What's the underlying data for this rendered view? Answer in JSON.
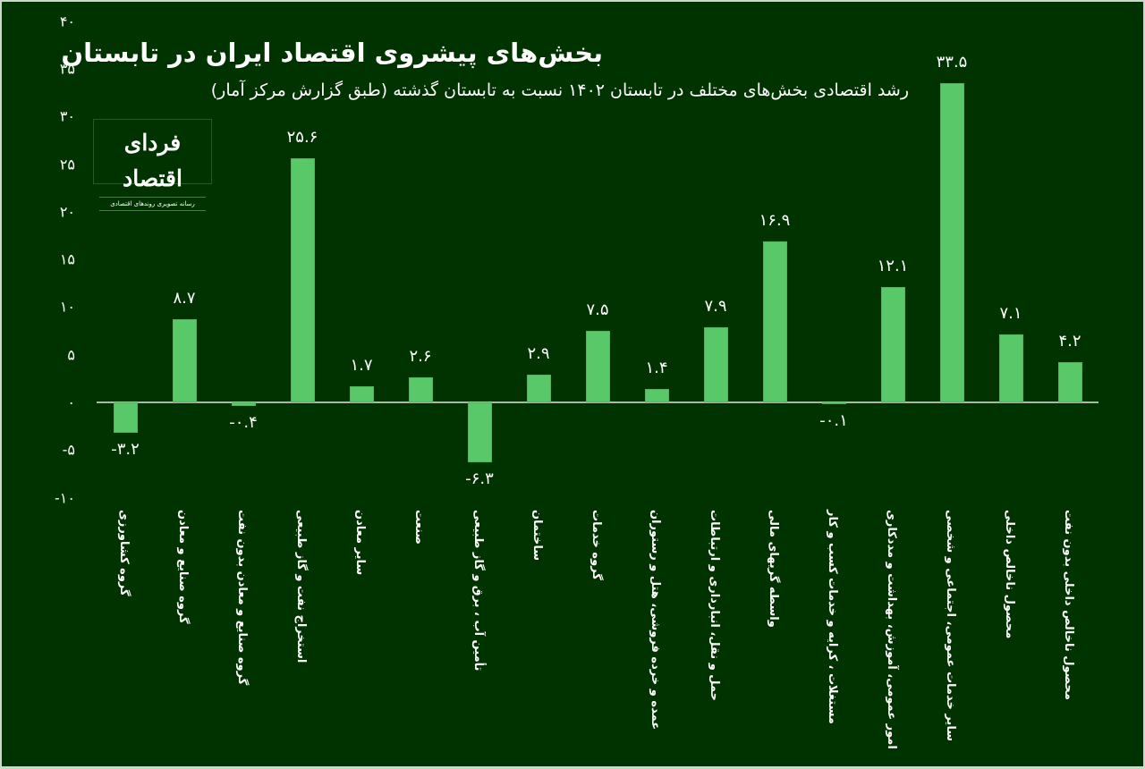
{
  "header": {
    "title": "بخش‌های پیشروی اقتصاد ایران در تابستان",
    "subtitle": "رشد اقتصادی بخش‌های مختلف در تابستان ۱۴۰۲ نسبت به تابستان گذشته (طبق گزارش مرکز آمار)"
  },
  "logo": {
    "name": "فردای اقتصاد",
    "tagline": "رسانه تصویری روندهای اقتصادی"
  },
  "colors": {
    "background": "#003300",
    "bar": "#59c868",
    "axis": "#a9b9a9",
    "text": "#ffffff"
  },
  "y_axis": {
    "ticks": [
      "۴۰",
      "۳۵",
      "۳۰",
      "۲۵",
      "۲۰",
      "۱۵",
      "۱۰",
      "۵",
      "۰",
      "-۵",
      "-۱۰"
    ],
    "tick_values": [
      40,
      35,
      30,
      25,
      20,
      15,
      10,
      5,
      0,
      -5,
      -10
    ]
  },
  "bars": [
    {
      "category": "گروه کشاورزی",
      "value": -3.2,
      "label": "-۳.۲"
    },
    {
      "category": "گروه صنایع و معادن",
      "value": 8.7,
      "label": "۸.۷"
    },
    {
      "category": "گروه صنایع و معادن بدون نفت",
      "value": -0.4,
      "label": "-۰.۴"
    },
    {
      "category": "استخراج نفت و گاز طبیعی",
      "value": 25.6,
      "label": "۲۵.۶"
    },
    {
      "category": "سایر معادن",
      "value": 1.7,
      "label": "۱.۷"
    },
    {
      "category": "صنعت",
      "value": 2.6,
      "label": "۲.۶"
    },
    {
      "category": "تأمین آب ، برق و گاز طبیعی",
      "value": -6.3,
      "label": "-۶.۳"
    },
    {
      "category": "ساختمان",
      "value": 2.9,
      "label": "۲.۹"
    },
    {
      "category": "گروه خدمات",
      "value": 7.5,
      "label": "۷.۵"
    },
    {
      "category": "عمده و خرده فروشی، هتل و رستوران",
      "value": 1.4,
      "label": "۱.۴"
    },
    {
      "category": "حمل و نقل، انبارداری و ارتباطات",
      "value": 7.9,
      "label": "۷.۹"
    },
    {
      "category": "واسطه گریهای مالی",
      "value": 16.9,
      "label": "۱۶.۹"
    },
    {
      "category": "مستغلات ، کرایه و خدمات کسب و کار",
      "value": -0.1,
      "label": "-۰.۱"
    },
    {
      "category": "امور عمومی، آموزش، بهداشت و مددکاری",
      "value": 12.1,
      "label": "۱۲.۱"
    },
    {
      "category": "سایر خدمات عمومی، اجتماعی و شخصی",
      "value": 33.5,
      "label": "۳۳.۵"
    },
    {
      "category": "محصول ناخالص داخلی",
      "value": 7.1,
      "label": "۷.۱"
    },
    {
      "category": "محصول ناخالص داخلی بدون نفت",
      "value": 4.2,
      "label": "۴.۲"
    }
  ],
  "chart_data": {
    "type": "bar",
    "title": "بخش‌های پیشروی اقتصاد ایران در تابستان",
    "subtitle": "رشد اقتصادی بخش‌های مختلف در تابستان ۱۴۰۲ نسبت به تابستان گذشته (طبق گزارش مرکز آمار)",
    "xlabel": "",
    "ylabel": "",
    "ylim": [
      -10,
      40
    ],
    "grid": false,
    "legend": null,
    "categories": [
      "گروه کشاورزی",
      "گروه صنایع و معادن",
      "گروه صنایع و معادن بدون نفت",
      "استخراج نفت و گاز طبیعی",
      "سایر معادن",
      "صنعت",
      "تأمین آب ، برق و گاز طبیعی",
      "ساختمان",
      "گروه خدمات",
      "عمده و خرده فروشی، هتل و رستوران",
      "حمل و نقل، انبارداری و ارتباطات",
      "واسطه گریهای مالی",
      "مستغلات ، کرایه و خدمات کسب و کار",
      "امور عمومی، آموزش، بهداشت و مددکاری",
      "سایر خدمات عمومی، اجتماعی و شخصی",
      "محصول ناخالص داخلی",
      "محصول ناخالص داخلی بدون نفت"
    ],
    "values": [
      -3.2,
      8.7,
      -0.4,
      25.6,
      1.7,
      2.6,
      -6.3,
      2.9,
      7.5,
      1.4,
      7.9,
      16.9,
      -0.1,
      12.1,
      33.5,
      7.1,
      4.2
    ],
    "yticks": [
      -10,
      -5,
      0,
      5,
      10,
      15,
      20,
      25,
      30,
      35,
      40
    ]
  }
}
